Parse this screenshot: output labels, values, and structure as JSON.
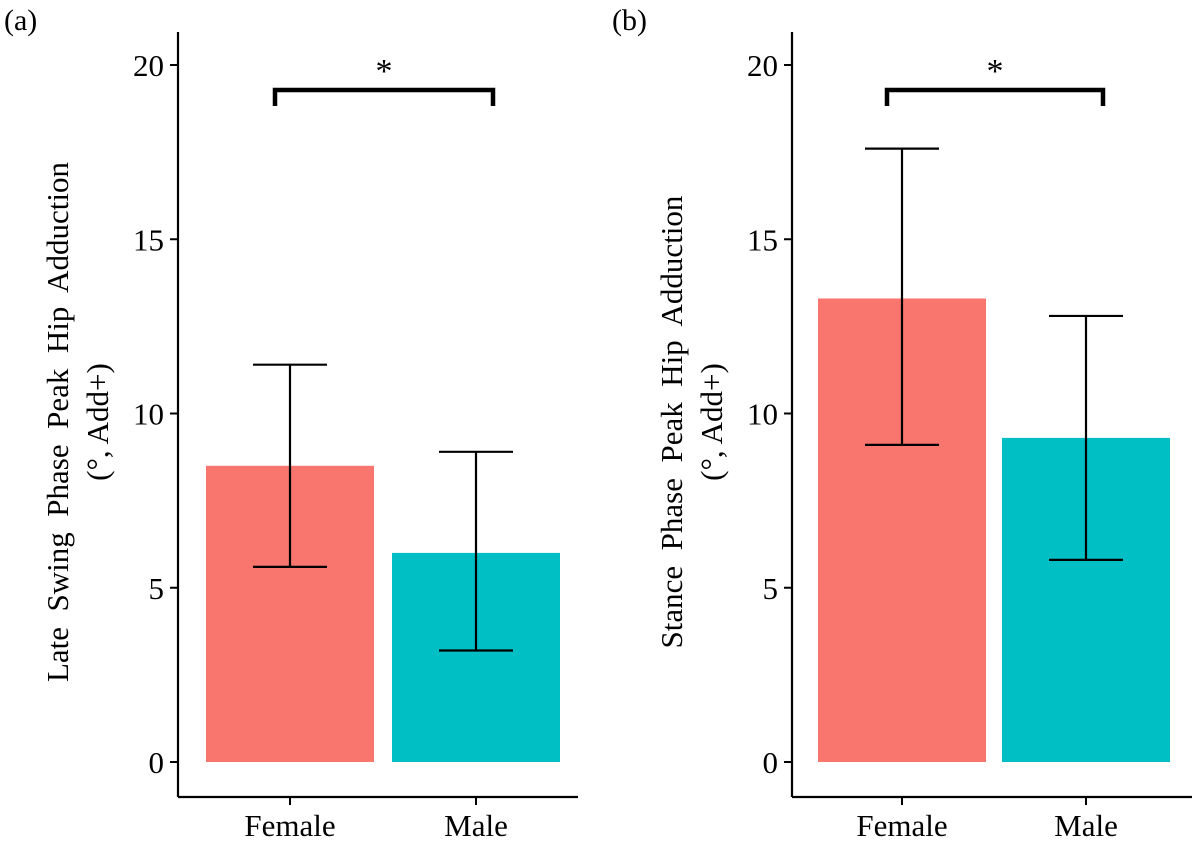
{
  "colors": {
    "female": "#F8766D",
    "male": "#00BFC4",
    "axis": "#000000"
  },
  "chart_data": [
    {
      "panel_label": "(a)",
      "type": "bar",
      "categories": [
        "Female",
        "Male"
      ],
      "values": [
        8.5,
        6.0
      ],
      "error_low": [
        5.6,
        3.2
      ],
      "error_high": [
        11.4,
        8.9
      ],
      "ylabel_line1": "Late  Swing  Phase  Peak  Hip  Adduction",
      "ylabel_line2": "(°, Add+)",
      "xlabel": "",
      "ylim": [
        0,
        21
      ],
      "yticks": [
        0,
        5,
        10,
        15,
        20
      ],
      "significance": {
        "from": "Female",
        "to": "Male",
        "label": "*",
        "level": 19.2
      },
      "grid": false
    },
    {
      "panel_label": "(b)",
      "type": "bar",
      "categories": [
        "Female",
        "Male"
      ],
      "values": [
        13.3,
        9.3
      ],
      "error_low": [
        9.1,
        5.8
      ],
      "error_high": [
        17.6,
        12.8
      ],
      "ylabel_line1": "Stance  Phase  Peak  Hip  Adduction",
      "ylabel_line2": "(°, Add+)",
      "xlabel": "",
      "ylim": [
        0,
        21
      ],
      "yticks": [
        0,
        5,
        10,
        15,
        20
      ],
      "significance": {
        "from": "Female",
        "to": "Male",
        "label": "*",
        "level": 19.2
      },
      "grid": false
    }
  ]
}
